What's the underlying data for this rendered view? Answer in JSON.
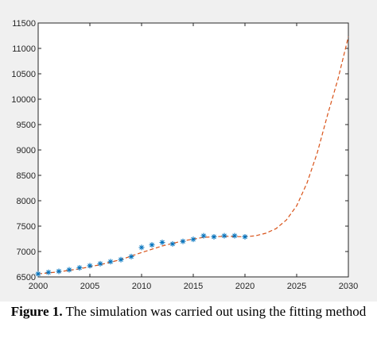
{
  "chart_data": {
    "type": "line",
    "xlim": [
      2000,
      2030
    ],
    "ylim": [
      6500,
      11500
    ],
    "xticks": [
      2000,
      2005,
      2010,
      2015,
      2020,
      2025,
      2030
    ],
    "yticks": [
      6500,
      7000,
      7500,
      8000,
      8500,
      9000,
      9500,
      10000,
      10500,
      11000,
      11500
    ],
    "series": [
      {
        "kind": "scatter",
        "marker": "asterisk",
        "color": "#0072bd",
        "x": [
          2000,
          2001,
          2002,
          2003,
          2004,
          2005,
          2006,
          2007,
          2008,
          2009,
          2010,
          2011,
          2012,
          2013,
          2014,
          2015,
          2016,
          2017,
          2018,
          2019,
          2020
        ],
        "y": [
          6560,
          6590,
          6610,
          6640,
          6680,
          6720,
          6760,
          6800,
          6840,
          6900,
          7080,
          7130,
          7180,
          7150,
          7200,
          7240,
          7310,
          7290,
          7310,
          7310,
          7290
        ]
      },
      {
        "kind": "line",
        "style": "dashed",
        "color": "#d95319",
        "x": [
          2000,
          2002,
          2004,
          2006,
          2008,
          2010,
          2012,
          2014,
          2016,
          2018,
          2020,
          2021,
          2022,
          2023,
          2024,
          2025,
          2026,
          2027,
          2028,
          2029,
          2030
        ],
        "y": [
          6560,
          6600,
          6660,
          6740,
          6840,
          6980,
          7110,
          7210,
          7280,
          7300,
          7290,
          7310,
          7360,
          7450,
          7620,
          7900,
          8350,
          8950,
          9700,
          10400,
          11230
        ]
      }
    ]
  },
  "caption": {
    "label": "Figure 1.",
    "text": " The simulation was carried out using the fitting method"
  },
  "colors": {
    "figure_bg": "#f0f0f0",
    "axes_bg": "#ffffff",
    "axis": "#262626"
  }
}
